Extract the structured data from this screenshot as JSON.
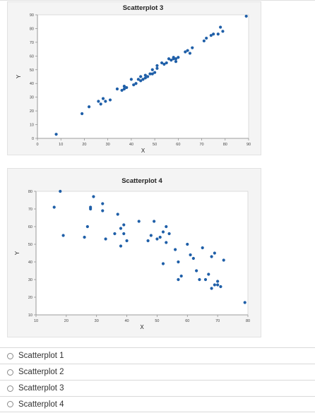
{
  "colors": {
    "point": "#1f5fa8",
    "axis": "#888888",
    "panel": "#f4f4f4",
    "plot": "#ffffff"
  },
  "chart_data": [
    {
      "type": "scatter",
      "title": "Scatterplot 3",
      "xlabel": "X",
      "ylabel": "Y",
      "xlim": [
        0,
        90
      ],
      "ylim": [
        0,
        90
      ],
      "xticks": [
        0,
        10,
        20,
        30,
        40,
        50,
        60,
        70,
        80,
        90
      ],
      "yticks": [
        0,
        10,
        20,
        30,
        40,
        50,
        60,
        70,
        80,
        90
      ],
      "grid": false,
      "points": [
        [
          8,
          3
        ],
        [
          19,
          18
        ],
        [
          22,
          23
        ],
        [
          26,
          27
        ],
        [
          27,
          25
        ],
        [
          28,
          29
        ],
        [
          29,
          27
        ],
        [
          31,
          28
        ],
        [
          34,
          36
        ],
        [
          36,
          35
        ],
        [
          37,
          36
        ],
        [
          37,
          38
        ],
        [
          38,
          37
        ],
        [
          40,
          43
        ],
        [
          41,
          39
        ],
        [
          42,
          40
        ],
        [
          43,
          43
        ],
        [
          44,
          42
        ],
        [
          44,
          45
        ],
        [
          45,
          43
        ],
        [
          46,
          44
        ],
        [
          46,
          46
        ],
        [
          47,
          45
        ],
        [
          48,
          47
        ],
        [
          49,
          47
        ],
        [
          49,
          50
        ],
        [
          50,
          48
        ],
        [
          51,
          51
        ],
        [
          51,
          53
        ],
        [
          53,
          55
        ],
        [
          54,
          54
        ],
        [
          55,
          55
        ],
        [
          56,
          58
        ],
        [
          57,
          57
        ],
        [
          58,
          58
        ],
        [
          58,
          59
        ],
        [
          59,
          56
        ],
        [
          59,
          58
        ],
        [
          60,
          59
        ],
        [
          63,
          63
        ],
        [
          64,
          64
        ],
        [
          65,
          62
        ],
        [
          66,
          66
        ],
        [
          71,
          71
        ],
        [
          72,
          73
        ],
        [
          74,
          75
        ],
        [
          75,
          76
        ],
        [
          77,
          76
        ],
        [
          78,
          81
        ],
        [
          79,
          78
        ],
        [
          89,
          89
        ]
      ]
    },
    {
      "type": "scatter",
      "title": "Scatterplot 4",
      "xlabel": "X",
      "ylabel": "Y",
      "xlim": [
        10,
        80
      ],
      "ylim": [
        10,
        80
      ],
      "xticks": [
        10,
        20,
        30,
        40,
        50,
        60,
        70,
        80
      ],
      "yticks": [
        10,
        20,
        30,
        40,
        50,
        60,
        70,
        80
      ],
      "grid": false,
      "points": [
        [
          16,
          71
        ],
        [
          18,
          80
        ],
        [
          19,
          55
        ],
        [
          26,
          54
        ],
        [
          27,
          60
        ],
        [
          28,
          71
        ],
        [
          28,
          70
        ],
        [
          29,
          77
        ],
        [
          32,
          73
        ],
        [
          32,
          69
        ],
        [
          33,
          53
        ],
        [
          36,
          56
        ],
        [
          37,
          67
        ],
        [
          38,
          59
        ],
        [
          38,
          49
        ],
        [
          39,
          61
        ],
        [
          39,
          56
        ],
        [
          40,
          52
        ],
        [
          44,
          63
        ],
        [
          47,
          52
        ],
        [
          48,
          55
        ],
        [
          49,
          63
        ],
        [
          50,
          53
        ],
        [
          51,
          54
        ],
        [
          52,
          39
        ],
        [
          52,
          57
        ],
        [
          53,
          60
        ],
        [
          53,
          51
        ],
        [
          54,
          56
        ],
        [
          56,
          47
        ],
        [
          57,
          30
        ],
        [
          57,
          40
        ],
        [
          58,
          32
        ],
        [
          60,
          50
        ],
        [
          61,
          44
        ],
        [
          62,
          42
        ],
        [
          63,
          35
        ],
        [
          64,
          30
        ],
        [
          65,
          48
        ],
        [
          66,
          30
        ],
        [
          67,
          33
        ],
        [
          68,
          43
        ],
        [
          68,
          25
        ],
        [
          69,
          27
        ],
        [
          69,
          45
        ],
        [
          70,
          29
        ],
        [
          70,
          27
        ],
        [
          71,
          26
        ],
        [
          72,
          41
        ],
        [
          79,
          17
        ]
      ]
    }
  ],
  "options": [
    {
      "label": "Scatterplot 1"
    },
    {
      "label": "Scatterplot 2"
    },
    {
      "label": "Scatterplot 3"
    },
    {
      "label": "Scatterplot 4"
    }
  ]
}
